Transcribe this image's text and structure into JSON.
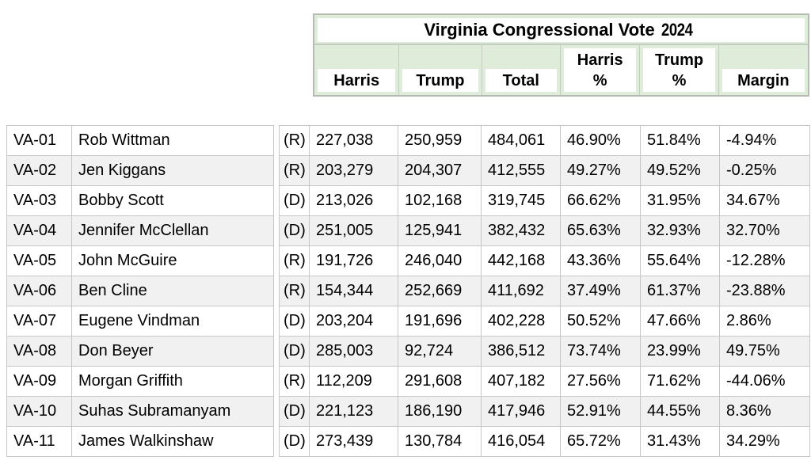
{
  "header": {
    "title_main": "Virginia Congressional Vote",
    "title_year": "2024",
    "columns": [
      {
        "key": "harris",
        "text": "Harris",
        "tall": false
      },
      {
        "key": "trump",
        "text": "Trump",
        "tall": false
      },
      {
        "key": "total",
        "text": "Total",
        "tall": false
      },
      {
        "key": "harris_pct",
        "text": "Harris\n%",
        "tall": true
      },
      {
        "key": "trump_pct",
        "text": "Trump\n%",
        "tall": true
      },
      {
        "key": "margin",
        "text": "Margin",
        "tall": false
      }
    ]
  },
  "chart_data": {
    "type": "table",
    "title": "Virginia Congressional Vote 2024",
    "visible_column_headers": [
      "Harris",
      "Trump",
      "Total",
      "Harris %",
      "Trump %",
      "Margin"
    ],
    "rows": [
      {
        "district": "VA-01",
        "name": "Rob Wittman",
        "party": "(R)",
        "harris": "227,038",
        "trump": "250,959",
        "total": "484,061",
        "harris_pct": "46.90%",
        "trump_pct": "51.84%",
        "margin": "-4.94%"
      },
      {
        "district": "VA-02",
        "name": "Jen Kiggans",
        "party": "(R)",
        "harris": "203,279",
        "trump": "204,307",
        "total": "412,555",
        "harris_pct": "49.27%",
        "trump_pct": "49.52%",
        "margin": "-0.25%"
      },
      {
        "district": "VA-03",
        "name": "Bobby Scott",
        "party": "(D)",
        "harris": "213,026",
        "trump": "102,168",
        "total": "319,745",
        "harris_pct": "66.62%",
        "trump_pct": "31.95%",
        "margin": "34.67%"
      },
      {
        "district": "VA-04",
        "name": "Jennifer McClellan",
        "party": "(D)",
        "harris": "251,005",
        "trump": "125,941",
        "total": "382,432",
        "harris_pct": "65.63%",
        "trump_pct": "32.93%",
        "margin": "32.70%"
      },
      {
        "district": "VA-05",
        "name": "John McGuire",
        "party": "(R)",
        "harris": "191,726",
        "trump": "246,040",
        "total": "442,168",
        "harris_pct": "43.36%",
        "trump_pct": "55.64%",
        "margin": "-12.28%"
      },
      {
        "district": "VA-06",
        "name": "Ben Cline",
        "party": "(R)",
        "harris": "154,344",
        "trump": "252,669",
        "total": "411,692",
        "harris_pct": "37.49%",
        "trump_pct": "61.37%",
        "margin": "-23.88%"
      },
      {
        "district": "VA-07",
        "name": "Eugene Vindman",
        "party": "(D)",
        "harris": "203,204",
        "trump": "191,696",
        "total": "402,228",
        "harris_pct": "50.52%",
        "trump_pct": "47.66%",
        "margin": "2.86%"
      },
      {
        "district": "VA-08",
        "name": "Don Beyer",
        "party": "(D)",
        "harris": "285,003",
        "trump": "92,724",
        "total": "386,512",
        "harris_pct": "73.74%",
        "trump_pct": "23.99%",
        "margin": "49.75%"
      },
      {
        "district": "VA-09",
        "name": "Morgan Griffith",
        "party": "(R)",
        "harris": "112,209",
        "trump": "291,608",
        "total": "407,182",
        "harris_pct": "27.56%",
        "trump_pct": "71.62%",
        "margin": "-44.06%"
      },
      {
        "district": "VA-10",
        "name": "Suhas Subramanyam",
        "party": "(D)",
        "harris": "221,123",
        "trump": "186,190",
        "total": "417,946",
        "harris_pct": "52.91%",
        "trump_pct": "44.55%",
        "margin": "8.36%"
      },
      {
        "district": "VA-11",
        "name": "James Walkinshaw",
        "party": "(D)",
        "harris": "273,439",
        "trump": "130,784",
        "total": "416,054",
        "harris_pct": "65.72%",
        "trump_pct": "31.43%",
        "margin": "34.29%"
      }
    ]
  },
  "colors": {
    "header_fill": "#dfecd9",
    "header_border": "#b6bcb2",
    "row_stripe": "#f1f1f1",
    "cell_border": "#c6c6c6",
    "text": "#000000"
  }
}
